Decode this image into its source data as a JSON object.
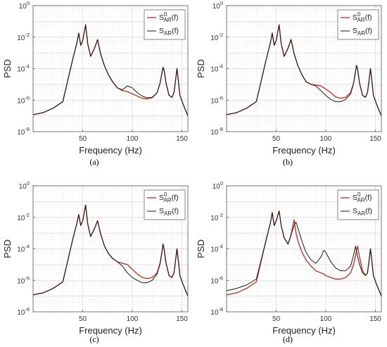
{
  "figure": {
    "panels": [
      {
        "caption": "(a)",
        "xlabel": "Frequency (Hz)",
        "ylabel": "PSD",
        "legend": [
          {
            "base": "S",
            "sup": "0",
            "sub": "AR",
            "arg": "(f)"
          },
          {
            "base": "S",
            "sup": "",
            "sub": "AR",
            "arg": "(f)"
          }
        ]
      },
      {
        "caption": "(b)",
        "xlabel": "Frequency (Hz)",
        "ylabel": "PSD",
        "legend": [
          {
            "base": "S",
            "sup": "0",
            "sub": "AR",
            "arg": "(f)"
          },
          {
            "base": "S",
            "sup": "",
            "sub": "AR",
            "arg": "(f)"
          }
        ]
      },
      {
        "caption": "(c)",
        "xlabel": "Frequency (Hz)",
        "ylabel": "PSD",
        "legend": [
          {
            "base": "S",
            "sup": "0",
            "sub": "AR",
            "arg": "(f)"
          },
          {
            "base": "S",
            "sup": "",
            "sub": "AR",
            "arg": "(f)"
          }
        ]
      },
      {
        "caption": "(d)",
        "xlabel": "Frequency (Hz)",
        "ylabel": "PSD",
        "legend": [
          {
            "base": "S",
            "sup": "0",
            "sub": "AR",
            "arg": "(f)"
          },
          {
            "base": "S",
            "sup": "",
            "sub": "AR",
            "arg": "(f)"
          }
        ]
      }
    ]
  },
  "colors": {
    "reference": "#c0392b",
    "estimate": "#1a1a1a",
    "grid": "#d9d9d9",
    "axis": "#555555"
  },
  "chart_data": [
    {
      "type": "line",
      "title": "",
      "xlabel": "Frequency (Hz)",
      "ylabel": "PSD",
      "xlim": [
        0,
        156
      ],
      "ylim": [
        1e-08,
        1
      ],
      "yscale": "log",
      "grid": true,
      "legend_position": "top-right",
      "xticks": [
        50,
        100,
        150
      ],
      "yticks": [
        "10^-8",
        "10^-6",
        "10^-4",
        "10^-2",
        "10^0"
      ],
      "x": [
        0,
        10,
        20,
        30,
        40,
        44,
        46,
        48,
        50,
        53,
        55,
        58,
        62,
        65,
        68,
        72,
        76,
        80,
        85,
        90,
        95,
        100,
        105,
        110,
        115,
        120,
        125,
        128,
        130,
        131,
        132,
        134,
        137,
        140,
        142,
        144,
        145,
        146,
        148,
        151,
        154,
        156
      ],
      "series": [
        {
          "name": "S0_AR(f)",
          "values": [
            1.2e-07,
            1.6e-07,
            3e-07,
            8e-07,
            0.0004,
            0.004,
            0.018,
            0.003,
            0.006,
            0.06,
            0.004,
            0.0006,
            0.002,
            0.007,
            0.0009,
            0.00015,
            4e-05,
            1.5e-05,
            6e-06,
            4e-06,
            3.5e-06,
            2.5e-06,
            1.8e-06,
            1.3e-06,
            1.2e-06,
            1.4e-06,
            3e-06,
            1.2e-05,
            6e-05,
            0.00012,
            8e-05,
            1.2e-05,
            2e-06,
            1.5e-06,
            3e-06,
            3e-05,
            0.0001,
            3e-05,
            2e-06,
            6e-07,
            2e-07,
            1e-07
          ]
        },
        {
          "name": "S_AR(f)",
          "values": [
            1.2e-07,
            1.6e-07,
            3e-07,
            8e-07,
            0.0004,
            0.004,
            0.018,
            0.003,
            0.006,
            0.06,
            0.004,
            0.0006,
            0.002,
            0.007,
            0.0009,
            0.00015,
            4e-05,
            1.5e-05,
            6e-06,
            4.5e-06,
            8e-06,
            6e-06,
            3e-06,
            1.8e-06,
            1.4e-06,
            1.5e-06,
            3e-06,
            1.2e-05,
            6e-05,
            0.00012,
            8e-05,
            1.2e-05,
            2e-06,
            1.5e-06,
            3e-06,
            3e-05,
            0.0001,
            3e-05,
            2e-06,
            6e-07,
            2e-07,
            1e-07
          ]
        }
      ]
    },
    {
      "type": "line",
      "title": "",
      "xlabel": "Frequency (Hz)",
      "ylabel": "PSD",
      "xlim": [
        0,
        156
      ],
      "ylim": [
        1e-08,
        1
      ],
      "yscale": "log",
      "grid": true,
      "legend_position": "top-right",
      "xticks": [
        50,
        100,
        150
      ],
      "yticks": [
        "10^-8",
        "10^-6",
        "10^-4",
        "10^-2",
        "10^0"
      ],
      "x": [
        0,
        10,
        20,
        30,
        40,
        44,
        46,
        48,
        50,
        53,
        55,
        58,
        62,
        65,
        68,
        72,
        76,
        80,
        85,
        90,
        95,
        100,
        105,
        110,
        115,
        120,
        125,
        128,
        130,
        131,
        132,
        134,
        137,
        140,
        142,
        144,
        145,
        146,
        148,
        151,
        154,
        156
      ],
      "series": [
        {
          "name": "S0_AR(f)",
          "values": [
            1.2e-07,
            1.6e-07,
            3e-07,
            8e-07,
            0.0004,
            0.004,
            0.018,
            0.003,
            0.006,
            0.06,
            0.004,
            0.0006,
            0.002,
            0.007,
            0.0009,
            0.00015,
            4e-05,
            1.5e-05,
            1e-05,
            9e-06,
            8e-06,
            5e-06,
            3e-06,
            1.6e-06,
            1.3e-06,
            1.5e-06,
            3e-06,
            1.2e-05,
            7e-05,
            0.00016,
            9e-05,
            1.2e-05,
            2e-06,
            1.5e-06,
            3e-06,
            3e-05,
            0.0001,
            3e-05,
            2e-06,
            6e-07,
            2e-07,
            1e-07
          ]
        },
        {
          "name": "S_AR(f)",
          "values": [
            1.2e-07,
            1.6e-07,
            3e-07,
            8e-07,
            0.0004,
            0.004,
            0.018,
            0.003,
            0.006,
            0.06,
            0.004,
            0.0006,
            0.002,
            0.007,
            0.0009,
            0.00015,
            4e-05,
            1.5e-05,
            1e-05,
            8e-06,
            4e-06,
            2e-06,
            1.1e-06,
            8e-07,
            8e-07,
            1.1e-06,
            2.5e-06,
            1.1e-05,
            7e-05,
            0.00016,
            9e-05,
            1.2e-05,
            2e-06,
            1.5e-06,
            3e-06,
            3e-05,
            0.0001,
            3e-05,
            2e-06,
            6e-07,
            2e-07,
            1e-07
          ]
        }
      ]
    },
    {
      "type": "line",
      "title": "",
      "xlabel": "Frequency (Hz)",
      "ylabel": "PSD",
      "xlim": [
        0,
        156
      ],
      "ylim": [
        1e-08,
        1
      ],
      "yscale": "log",
      "grid": true,
      "legend_position": "top-right",
      "xticks": [
        50,
        100,
        150
      ],
      "yticks": [
        "10^-8",
        "10^-6",
        "10^-4",
        "10^-2",
        "10^0"
      ],
      "x": [
        0,
        10,
        20,
        30,
        40,
        44,
        46,
        48,
        50,
        53,
        55,
        58,
        62,
        65,
        68,
        72,
        76,
        80,
        85,
        90,
        95,
        100,
        105,
        110,
        115,
        120,
        125,
        128,
        130,
        131,
        132,
        134,
        137,
        140,
        142,
        144,
        145,
        146,
        148,
        151,
        154,
        156
      ],
      "series": [
        {
          "name": "S0_AR(f)",
          "values": [
            1.2e-07,
            1.6e-07,
            3e-07,
            8e-07,
            0.0004,
            0.004,
            0.015,
            0.003,
            0.006,
            0.06,
            0.004,
            0.0006,
            0.002,
            0.006,
            0.0009,
            0.00015,
            5e-05,
            2.5e-05,
            1.5e-05,
            1.2e-05,
            1e-05,
            5e-06,
            2.5e-06,
            1.5e-06,
            1.3e-06,
            1.5e-06,
            3e-06,
            1.2e-05,
            7e-05,
            0.0002,
            0.0001,
            1.2e-05,
            2e-06,
            1.5e-06,
            3e-06,
            3e-05,
            0.0001,
            3e-05,
            2e-06,
            6e-07,
            2e-07,
            1e-07
          ]
        },
        {
          "name": "S_AR(f)",
          "values": [
            1.2e-07,
            1.6e-07,
            3e-07,
            8e-07,
            0.0004,
            0.004,
            0.015,
            0.003,
            0.006,
            0.06,
            0.004,
            0.0006,
            0.002,
            0.006,
            0.0009,
            0.00015,
            5e-05,
            2.5e-05,
            1.5e-05,
            8e-06,
            3e-06,
            1.5e-06,
            1e-06,
            7e-07,
            7e-07,
            1e-06,
            2.5e-06,
            1.1e-05,
            7e-05,
            0.0002,
            0.0001,
            1.2e-05,
            2e-06,
            1.5e-06,
            3e-06,
            3e-05,
            0.0001,
            3e-05,
            2e-06,
            6e-07,
            2e-07,
            1e-07
          ]
        }
      ]
    },
    {
      "type": "line",
      "title": "",
      "xlabel": "Frequency (Hz)",
      "ylabel": "PSD",
      "xlim": [
        0,
        156
      ],
      "ylim": [
        1e-08,
        1
      ],
      "yscale": "log",
      "grid": true,
      "legend_position": "top-right",
      "xticks": [
        50,
        100,
        150
      ],
      "yticks": [
        "10^-8",
        "10^-6",
        "10^-4",
        "10^-2",
        "10^0"
      ],
      "x": [
        0,
        10,
        20,
        30,
        40,
        44,
        46,
        48,
        50,
        53,
        55,
        58,
        62,
        65,
        68,
        70,
        72,
        76,
        80,
        85,
        90,
        95,
        98,
        100,
        105,
        110,
        115,
        120,
        125,
        128,
        130,
        132,
        134,
        137,
        140,
        142,
        144,
        145,
        146,
        148,
        151,
        154,
        156
      ],
      "series": [
        {
          "name": "S0_AR(f)",
          "values": [
            1.2e-07,
            1.6e-07,
            3e-07,
            8e-07,
            0.0004,
            0.004,
            0.02,
            0.003,
            0.006,
            0.025,
            0.003,
            0.0005,
            0.0002,
            0.0008,
            0.007,
            0.001,
            0.0003,
            6e-05,
            2e-05,
            8e-06,
            4e-06,
            3e-06,
            2.5e-06,
            2e-06,
            1.5e-06,
            1.2e-06,
            1.2e-06,
            1.5e-06,
            3e-06,
            1e-05,
            4e-05,
            0.00015,
            3e-05,
            4e-06,
            2e-06,
            3e-06,
            3e-05,
            0.0001,
            3e-05,
            2e-06,
            6e-07,
            2e-07,
            1e-07
          ]
        },
        {
          "name": "S_AR(f)",
          "values": [
            2.2e-07,
            3e-07,
            5e-07,
            1.2e-06,
            0.0004,
            0.004,
            0.02,
            0.003,
            0.006,
            0.025,
            0.003,
            0.0005,
            0.0002,
            0.0008,
            0.003,
            0.005,
            0.002,
            0.0003,
            6e-05,
            2e-05,
            1.2e-05,
            3e-05,
            8e-05,
            6e-05,
            1.5e-05,
            6e-06,
            4e-06,
            4e-06,
            8e-06,
            4e-05,
            0.00015,
            3e-05,
            1e-05,
            3e-06,
            2e-06,
            3e-06,
            3e-05,
            0.0001,
            3e-05,
            2e-06,
            6e-07,
            2e-07,
            1e-07
          ]
        }
      ]
    }
  ]
}
